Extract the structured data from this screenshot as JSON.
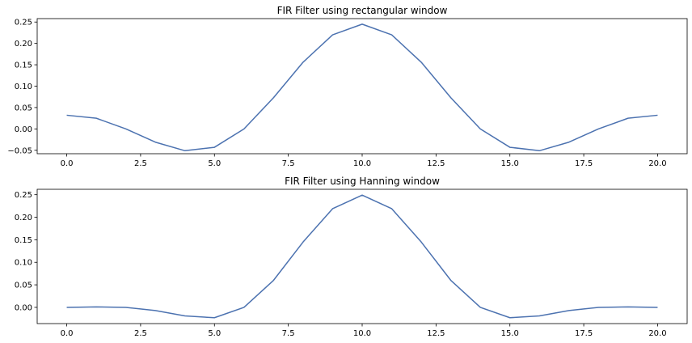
{
  "chart_data": [
    {
      "type": "line",
      "title": "FIR Filter using rectangular window",
      "xlabel": "",
      "ylabel": "",
      "xlim": [
        -1.0,
        21.0
      ],
      "ylim": [
        -0.058,
        0.258
      ],
      "xticks": [
        0.0,
        2.5,
        5.0,
        7.5,
        10.0,
        12.5,
        15.0,
        17.5,
        20.0
      ],
      "xtick_labels": [
        "0.0",
        "2.5",
        "5.0",
        "7.5",
        "10.0",
        "12.5",
        "15.0",
        "17.5",
        "20.0"
      ],
      "yticks": [
        -0.05,
        0.0,
        0.05,
        0.1,
        0.15,
        0.2,
        0.25
      ],
      "ytick_labels": [
        "−0.05",
        "0.00",
        "0.05",
        "0.10",
        "0.15",
        "0.20",
        "0.25"
      ],
      "grid": false,
      "color": "#4c72b0",
      "series": [
        {
          "x": [
            0,
            1,
            2,
            3,
            4,
            5,
            6,
            7,
            8,
            9,
            10,
            11,
            12,
            13,
            14,
            15,
            16,
            17,
            18,
            19,
            20
          ],
          "values": [
            0.032,
            0.025,
            0.0,
            -0.031,
            -0.051,
            -0.043,
            0.0,
            0.073,
            0.156,
            0.22,
            0.245,
            0.22,
            0.156,
            0.073,
            0.0,
            -0.043,
            -0.051,
            -0.031,
            0.0,
            0.025,
            0.032
          ]
        }
      ]
    },
    {
      "type": "line",
      "title": "FIR Filter using Hanning window",
      "xlabel": "",
      "ylabel": "",
      "xlim": [
        -1.0,
        21.0
      ],
      "ylim": [
        -0.036,
        0.262
      ],
      "xticks": [
        0.0,
        2.5,
        5.0,
        7.5,
        10.0,
        12.5,
        15.0,
        17.5,
        20.0
      ],
      "xtick_labels": [
        "0.0",
        "2.5",
        "5.0",
        "7.5",
        "10.0",
        "12.5",
        "15.0",
        "17.5",
        "20.0"
      ],
      "yticks": [
        0.0,
        0.05,
        0.1,
        0.15,
        0.2,
        0.25
      ],
      "ytick_labels": [
        "0.00",
        "0.05",
        "0.10",
        "0.15",
        "0.20",
        "0.25"
      ],
      "grid": false,
      "color": "#4c72b0",
      "series": [
        {
          "x": [
            0,
            1,
            2,
            3,
            4,
            5,
            6,
            7,
            8,
            9,
            10,
            11,
            12,
            13,
            14,
            15,
            16,
            17,
            18,
            19,
            20
          ],
          "values": [
            0.0,
            0.001,
            0.0,
            -0.007,
            -0.019,
            -0.023,
            0.0,
            0.06,
            0.145,
            0.219,
            0.249,
            0.219,
            0.145,
            0.06,
            0.0,
            -0.023,
            -0.019,
            -0.007,
            0.0,
            0.001,
            0.0
          ]
        }
      ]
    }
  ]
}
